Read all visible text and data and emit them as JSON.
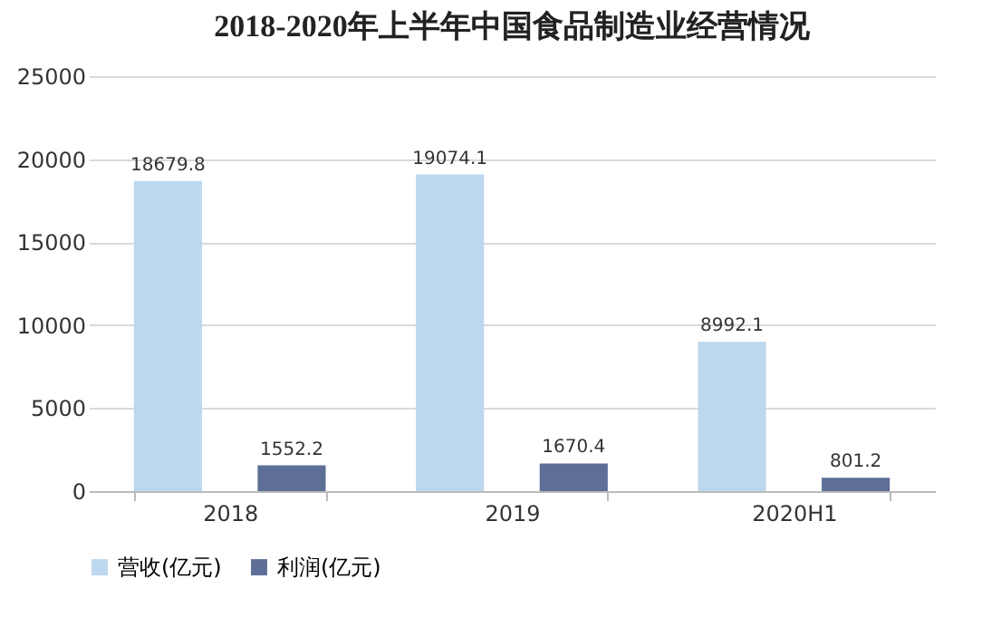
{
  "chart_data": {
    "type": "bar",
    "title": "2018-2020年上半年中国食品制造业经营情况",
    "categories": [
      "2018",
      "2019",
      "2020H1"
    ],
    "series": [
      {
        "name": "营收(亿元)",
        "color": "#bdd7ee",
        "values": [
          18679.8,
          19074.1,
          8992.1
        ]
      },
      {
        "name": "利润(亿元)",
        "color": "#5d6e97",
        "values": [
          1552.2,
          1670.4,
          801.2
        ]
      }
    ],
    "ylim": [
      0,
      25000
    ],
    "yticks": [
      0,
      5000,
      10000,
      15000,
      20000,
      25000
    ],
    "grid": "y",
    "legend": "bottom",
    "data_labels": true
  }
}
